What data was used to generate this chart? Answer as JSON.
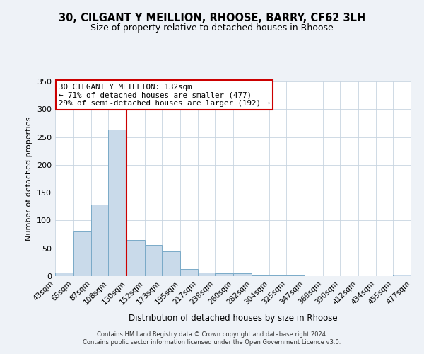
{
  "title": "30, CILGANT Y MEILLION, RHOOSE, BARRY, CF62 3LH",
  "subtitle": "Size of property relative to detached houses in Rhoose",
  "xlabel": "Distribution of detached houses by size in Rhoose",
  "ylabel": "Number of detached properties",
  "bar_color": "#c9daea",
  "bar_edge_color": "#7aaac8",
  "vline_x": 130,
  "vline_color": "#cc0000",
  "annotation_title": "30 CILGANT Y MEILLION: 132sqm",
  "annotation_line1": "← 71% of detached houses are smaller (477)",
  "annotation_line2": "29% of semi-detached houses are larger (192) →",
  "annotation_box_color": "white",
  "annotation_box_edge_color": "#cc0000",
  "bins": [
    43,
    65,
    87,
    108,
    130,
    152,
    173,
    195,
    217,
    238,
    260,
    282,
    304,
    325,
    347,
    369,
    390,
    412,
    434,
    455,
    477
  ],
  "counts": [
    6,
    81,
    129,
    263,
    65,
    56,
    45,
    13,
    7,
    5,
    5,
    1,
    1,
    1,
    0,
    0,
    0,
    0,
    0,
    2
  ],
  "ylim": [
    0,
    350
  ],
  "yticks": [
    0,
    50,
    100,
    150,
    200,
    250,
    300,
    350
  ],
  "footer_line1": "Contains HM Land Registry data © Crown copyright and database right 2024.",
  "footer_line2": "Contains public sector information licensed under the Open Government Licence v3.0.",
  "background_color": "#eef2f7",
  "plot_bg_color": "#ffffff",
  "grid_color": "#c8d4e0"
}
